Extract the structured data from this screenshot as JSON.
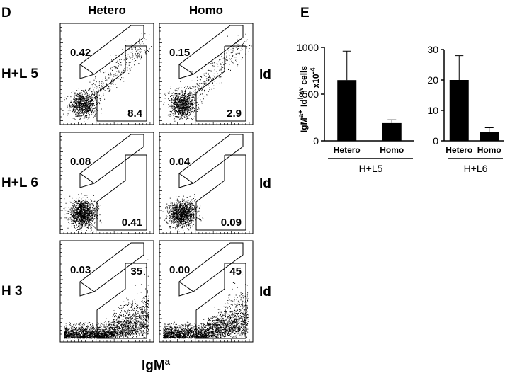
{
  "panel_d": {
    "label": "D",
    "columns": [
      "Hetero",
      "Homo"
    ],
    "x_label": {
      "main": "IgM",
      "sup": "a"
    },
    "rows": [
      {
        "label": "H+L 5",
        "right_label": "Id",
        "plots": [
          {
            "upper_gate": "0.42",
            "right_gate": "8.4"
          },
          {
            "upper_gate": "0.15",
            "right_gate": "2.9"
          }
        ]
      },
      {
        "label": "H+L 6",
        "right_label": "Id",
        "plots": [
          {
            "upper_gate": "0.08",
            "right_gate": "0.41"
          },
          {
            "upper_gate": "0.04",
            "right_gate": "0.09"
          }
        ]
      },
      {
        "label": "H 3",
        "right_label": "Id",
        "plots": [
          {
            "upper_gate": "0.03",
            "right_gate": "35"
          },
          {
            "upper_gate": "0.00",
            "right_gate": "45"
          }
        ]
      }
    ]
  },
  "panel_e_label": "E",
  "chart_data": [
    {
      "type": "bar",
      "y_label": [
        [
          {
            "text": "IgM"
          },
          {
            "text": "a+",
            "sup": true
          },
          {
            "text": "Id"
          },
          {
            "text": "low",
            "sup": true
          },
          {
            "text": "cells"
          }
        ],
        [
          {
            "text": "x10"
          },
          {
            "text": "-4",
            "sup": true
          }
        ]
      ],
      "categories": [
        "Hetero",
        "Homo"
      ],
      "values": [
        650,
        190
      ],
      "errors": [
        310,
        35
      ],
      "color": "#000000",
      "ylim": [
        0,
        1000
      ],
      "yticks": [
        0,
        500,
        1000
      ],
      "group_label": "H+L5"
    },
    {
      "type": "bar",
      "categories": [
        "Hetero",
        "Homo"
      ],
      "values": [
        20,
        3
      ],
      "errors": [
        8,
        1.3
      ],
      "color": "#000000",
      "ylim": [
        0,
        30
      ],
      "yticks": [
        0,
        10,
        20,
        30
      ],
      "group_label": "H+L6"
    }
  ]
}
